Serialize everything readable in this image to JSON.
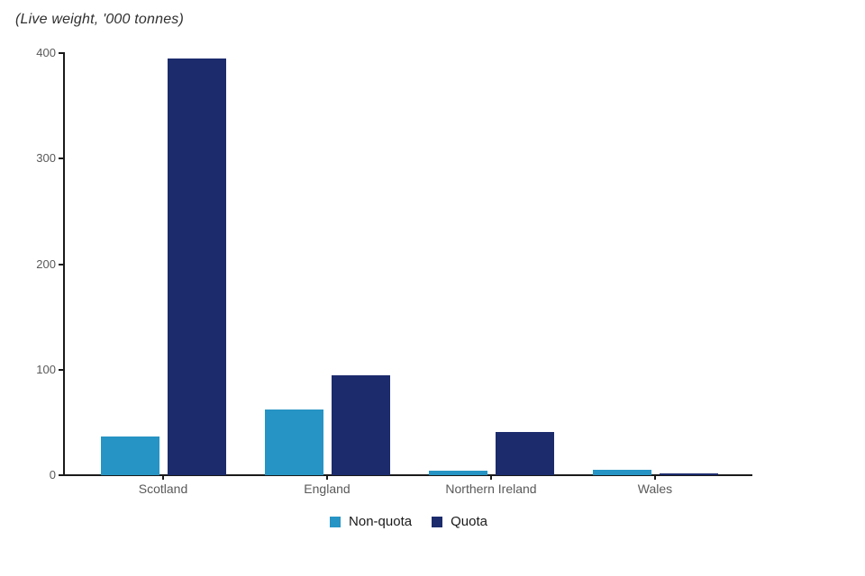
{
  "chart_data": {
    "type": "bar",
    "title": "(Live weight, '000 tonnes)",
    "categories": [
      "Scotland",
      "England",
      "Northern Ireland",
      "Wales"
    ],
    "series": [
      {
        "name": "Non-quota",
        "color": "#2694c4",
        "values": [
          37,
          62,
          4.5,
          5
        ]
      },
      {
        "name": "Quota",
        "color": "#1c2b6c",
        "values": [
          395,
          95,
          41,
          1.5
        ]
      }
    ],
    "xlabel": "",
    "ylabel": "",
    "ylim": [
      0,
      400
    ],
    "yticks": [
      0,
      100,
      200,
      300,
      400
    ],
    "grid": false,
    "legend_position": "bottom-center",
    "colors": {
      "axis": "#1a1a1a",
      "tick_label": "#595959",
      "title_text": "#303030",
      "legend_text": "#1a1a1a"
    }
  }
}
